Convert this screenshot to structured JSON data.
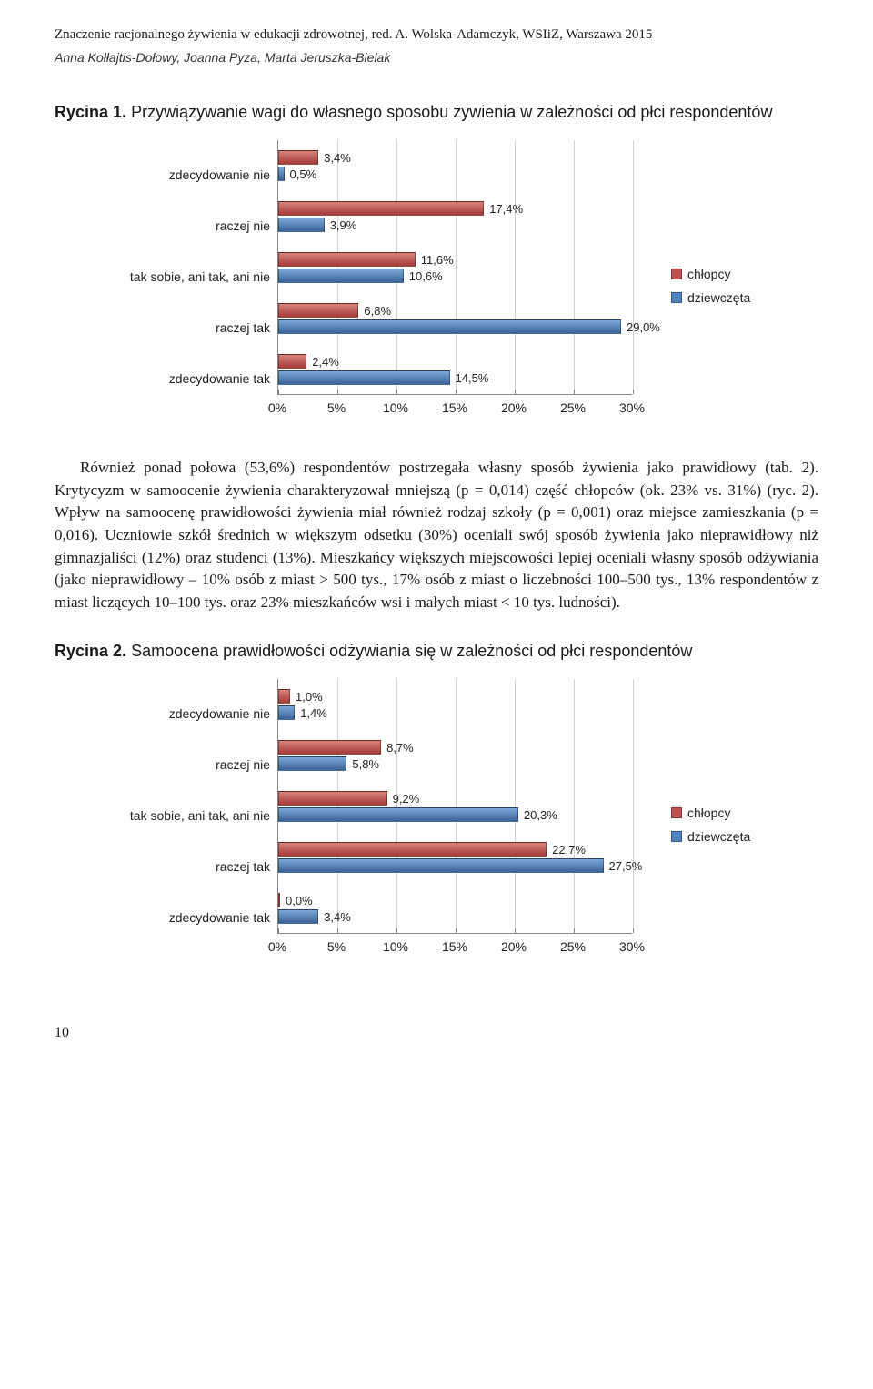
{
  "header": "Znaczenie racjonalnego żywienia w edukacji zdrowotnej, red. A. Wolska-Adamczyk, WSIiZ, Warszawa 2015",
  "authors": "Anna Kołłajtis-Dołowy, Joanna Pyza, Marta Jeruszka-Bielak",
  "fig1": {
    "label": "Rycina 1.",
    "title": "Przywiązywanie wagi do własnego sposobu żywienia w zależności od płci respondentów"
  },
  "chart1": {
    "xmax": 30,
    "xtick_step": 5,
    "categories": [
      "zdecydowanie nie",
      "raczej nie",
      "tak sobie, ani tak, ani nie",
      "raczej tak",
      "zdecydowanie tak"
    ],
    "series": [
      {
        "name": "chłopcy",
        "color_class": "bar-red",
        "swatch": "#c0504d",
        "values": [
          3.4,
          17.4,
          11.6,
          6.8,
          2.4
        ],
        "labels": [
          "3,4%",
          "17,4%",
          "11,6%",
          "6,8%",
          "2,4%"
        ]
      },
      {
        "name": "dziewczęta",
        "color_class": "bar-blue",
        "swatch": "#4f81bd",
        "values": [
          0.5,
          3.9,
          10.6,
          29.0,
          14.5
        ],
        "labels": [
          "0,5%",
          "3,9%",
          "10,6%",
          "29,0%",
          "14,5%"
        ]
      }
    ],
    "xtick_labels": [
      "0%",
      "5%",
      "10%",
      "15%",
      "20%",
      "25%",
      "30%"
    ]
  },
  "paragraph": "Również ponad połowa (53,6%) respondentów postrzegała własny sposób żywienia jako prawidłowy (tab. 2). Krytycyzm w samoocenie żywienia charakteryzował mniejszą (p = 0,014) część chłopców (ok. 23% vs. 31%) (ryc. 2). Wpływ na samoocenę prawidłowości żywienia miał również rodzaj szkoły (p = 0,001) oraz miejsce zamieszkania (p = 0,016). Uczniowie szkół średnich w większym odsetku (30%) oceniali swój sposób żywienia jako nieprawidłowy niż gimnazjaliści (12%) oraz studenci (13%). Mieszkańcy większych miejscowości lepiej oceniali własny sposób odżywiania (jako nieprawidłowy – 10% osób z miast > 500 tys., 17% osób z miast o liczebności 100–500 tys., 13% respondentów z miast liczących 10–100 tys. oraz 23% mieszkańców wsi i małych miast < 10 tys. ludności).",
  "fig2": {
    "label": "Rycina 2.",
    "title": "Samoocena prawidłowości odżywiania się w zależności od płci respondentów"
  },
  "chart2": {
    "xmax": 30,
    "xtick_step": 5,
    "categories": [
      "zdecydowanie nie",
      "raczej nie",
      "tak sobie, ani tak, ani nie",
      "raczej tak",
      "zdecydowanie tak"
    ],
    "series": [
      {
        "name": "chłopcy",
        "color_class": "bar-red",
        "swatch": "#c0504d",
        "values": [
          1.0,
          8.7,
          9.2,
          22.7,
          0.0
        ],
        "labels": [
          "1,0%",
          "8,7%",
          "9,2%",
          "22,7%",
          "0,0%"
        ]
      },
      {
        "name": "dziewczęta",
        "color_class": "bar-blue",
        "swatch": "#4f81bd",
        "values": [
          1.4,
          5.8,
          20.3,
          27.5,
          3.4
        ],
        "labels": [
          "1,4%",
          "5,8%",
          "20,3%",
          "27,5%",
          "3,4%"
        ]
      }
    ],
    "xtick_labels": [
      "0%",
      "5%",
      "10%",
      "15%",
      "20%",
      "25%",
      "30%"
    ]
  },
  "page_number": "10"
}
